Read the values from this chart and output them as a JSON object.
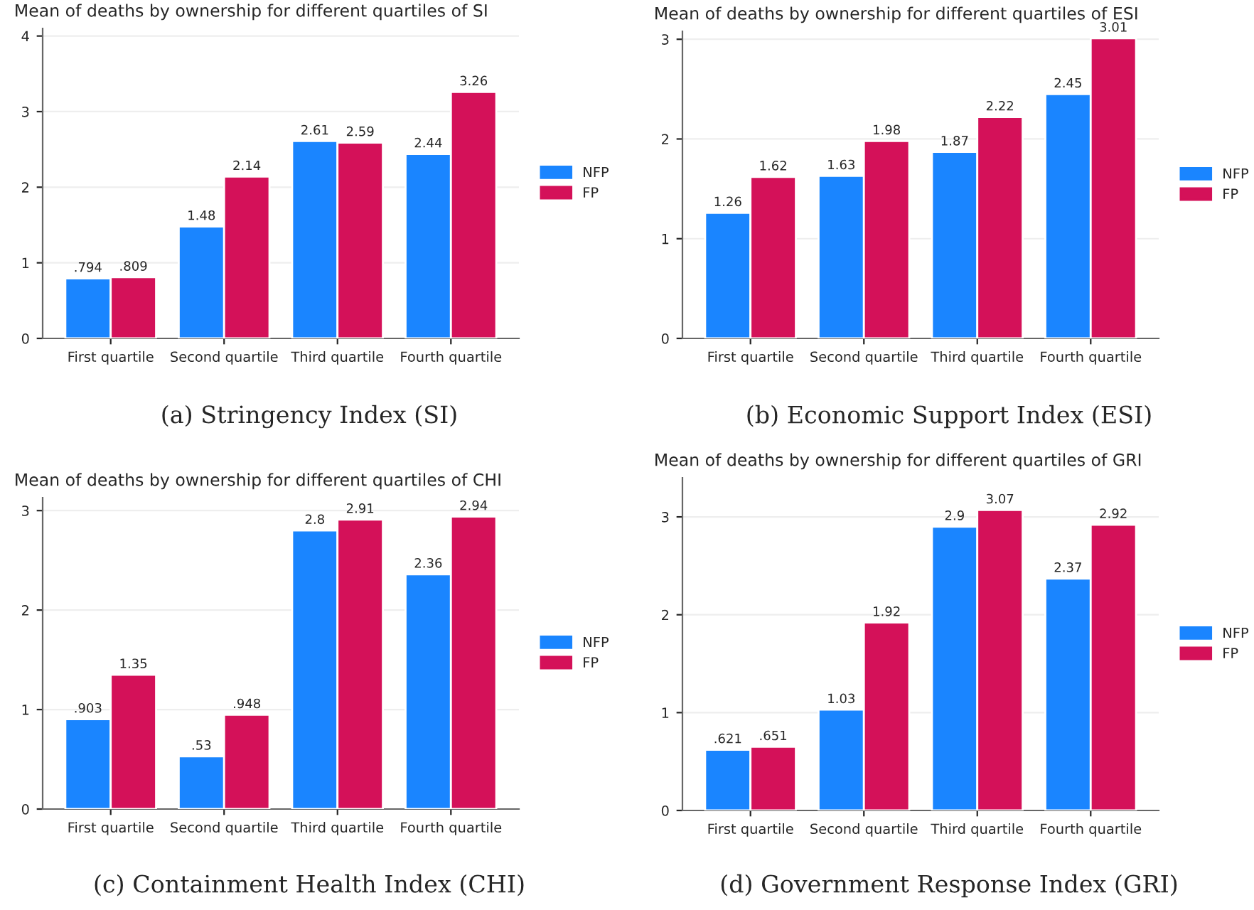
{
  "chart_data": [
    {
      "type": "bar",
      "title": "Mean of deaths by ownership for different quartiles of SI",
      "categories": [
        "First quartile",
        "Second quartile",
        "Third quartile",
        "Fourth quartile"
      ],
      "series": [
        {
          "name": "NFP",
          "color": "#1a85ff",
          "values": [
            0.794,
            1.48,
            2.61,
            2.44
          ],
          "value_labels": [
            ".794",
            "1.48",
            "2.61",
            "2.44"
          ]
        },
        {
          "name": "FP",
          "color": "#d41159",
          "values": [
            0.809,
            2.14,
            2.59,
            3.26
          ],
          "value_labels": [
            ".809",
            "2.14",
            "2.59",
            "3.26"
          ]
        }
      ],
      "ylim": [
        0,
        4.1
      ],
      "yticks": [
        0,
        1,
        2,
        3,
        4
      ],
      "grid": "y",
      "legend": "right",
      "annotations": [
        "(a) Stringency Index (SI)"
      ]
    },
    {
      "type": "bar",
      "title": "Mean of deaths by ownership for different quartiles of ESI",
      "categories": [
        "First quartile",
        "Second quartile",
        "Third quartile",
        "Fourth quartile"
      ],
      "series": [
        {
          "name": "NFP",
          "color": "#1a85ff",
          "values": [
            1.26,
            1.63,
            1.87,
            2.45
          ],
          "value_labels": [
            "1.26",
            "1.63",
            "1.87",
            "2.45"
          ]
        },
        {
          "name": "FP",
          "color": "#d41159",
          "values": [
            1.62,
            1.98,
            2.22,
            3.01
          ],
          "value_labels": [
            "1.62",
            "1.98",
            "2.22",
            "3.01"
          ]
        }
      ],
      "ylim": [
        0,
        3.08
      ],
      "yticks": [
        0,
        1,
        2,
        3
      ],
      "grid": "y",
      "legend": "right",
      "annotations": [
        "(b) Economic Support Index (ESI)"
      ]
    },
    {
      "type": "bar",
      "title": "Mean of deaths by ownership for different quartiles of CHI",
      "categories": [
        "First quartile",
        "Second quartile",
        "Third quartile",
        "Fourth quartile"
      ],
      "series": [
        {
          "name": "NFP",
          "color": "#1a85ff",
          "values": [
            0.903,
            0.53,
            2.8,
            2.36
          ],
          "value_labels": [
            ".903",
            ".53",
            "2.8",
            "2.36"
          ]
        },
        {
          "name": "FP",
          "color": "#d41159",
          "values": [
            1.35,
            0.948,
            2.91,
            2.94
          ],
          "value_labels": [
            "1.35",
            ".948",
            "2.91",
            "2.94"
          ]
        }
      ],
      "ylim": [
        0,
        3.13
      ],
      "yticks": [
        0,
        1,
        2,
        3
      ],
      "grid": "y",
      "legend": "right",
      "annotations": [
        "(c) Containment Health Index (CHI)"
      ]
    },
    {
      "type": "bar",
      "title": "Mean of deaths by ownership for different quartiles of GRI",
      "categories": [
        "First quartile",
        "Second quartile",
        "Third quartile",
        "Fourth quartile"
      ],
      "series": [
        {
          "name": "NFP",
          "color": "#1a85ff",
          "values": [
            0.621,
            1.03,
            2.9,
            2.37
          ],
          "value_labels": [
            ".621",
            "1.03",
            "2.9",
            "2.37"
          ]
        },
        {
          "name": "FP",
          "color": "#d41159",
          "values": [
            0.651,
            1.92,
            3.07,
            2.92
          ],
          "value_labels": [
            ".651",
            "1.92",
            "3.07",
            "2.92"
          ]
        }
      ],
      "ylim": [
        0,
        3.4
      ],
      "yticks": [
        0,
        1,
        2,
        3
      ],
      "grid": "y",
      "legend": "right",
      "annotations": [
        "(d) Government Response Index (GRI)"
      ]
    }
  ]
}
